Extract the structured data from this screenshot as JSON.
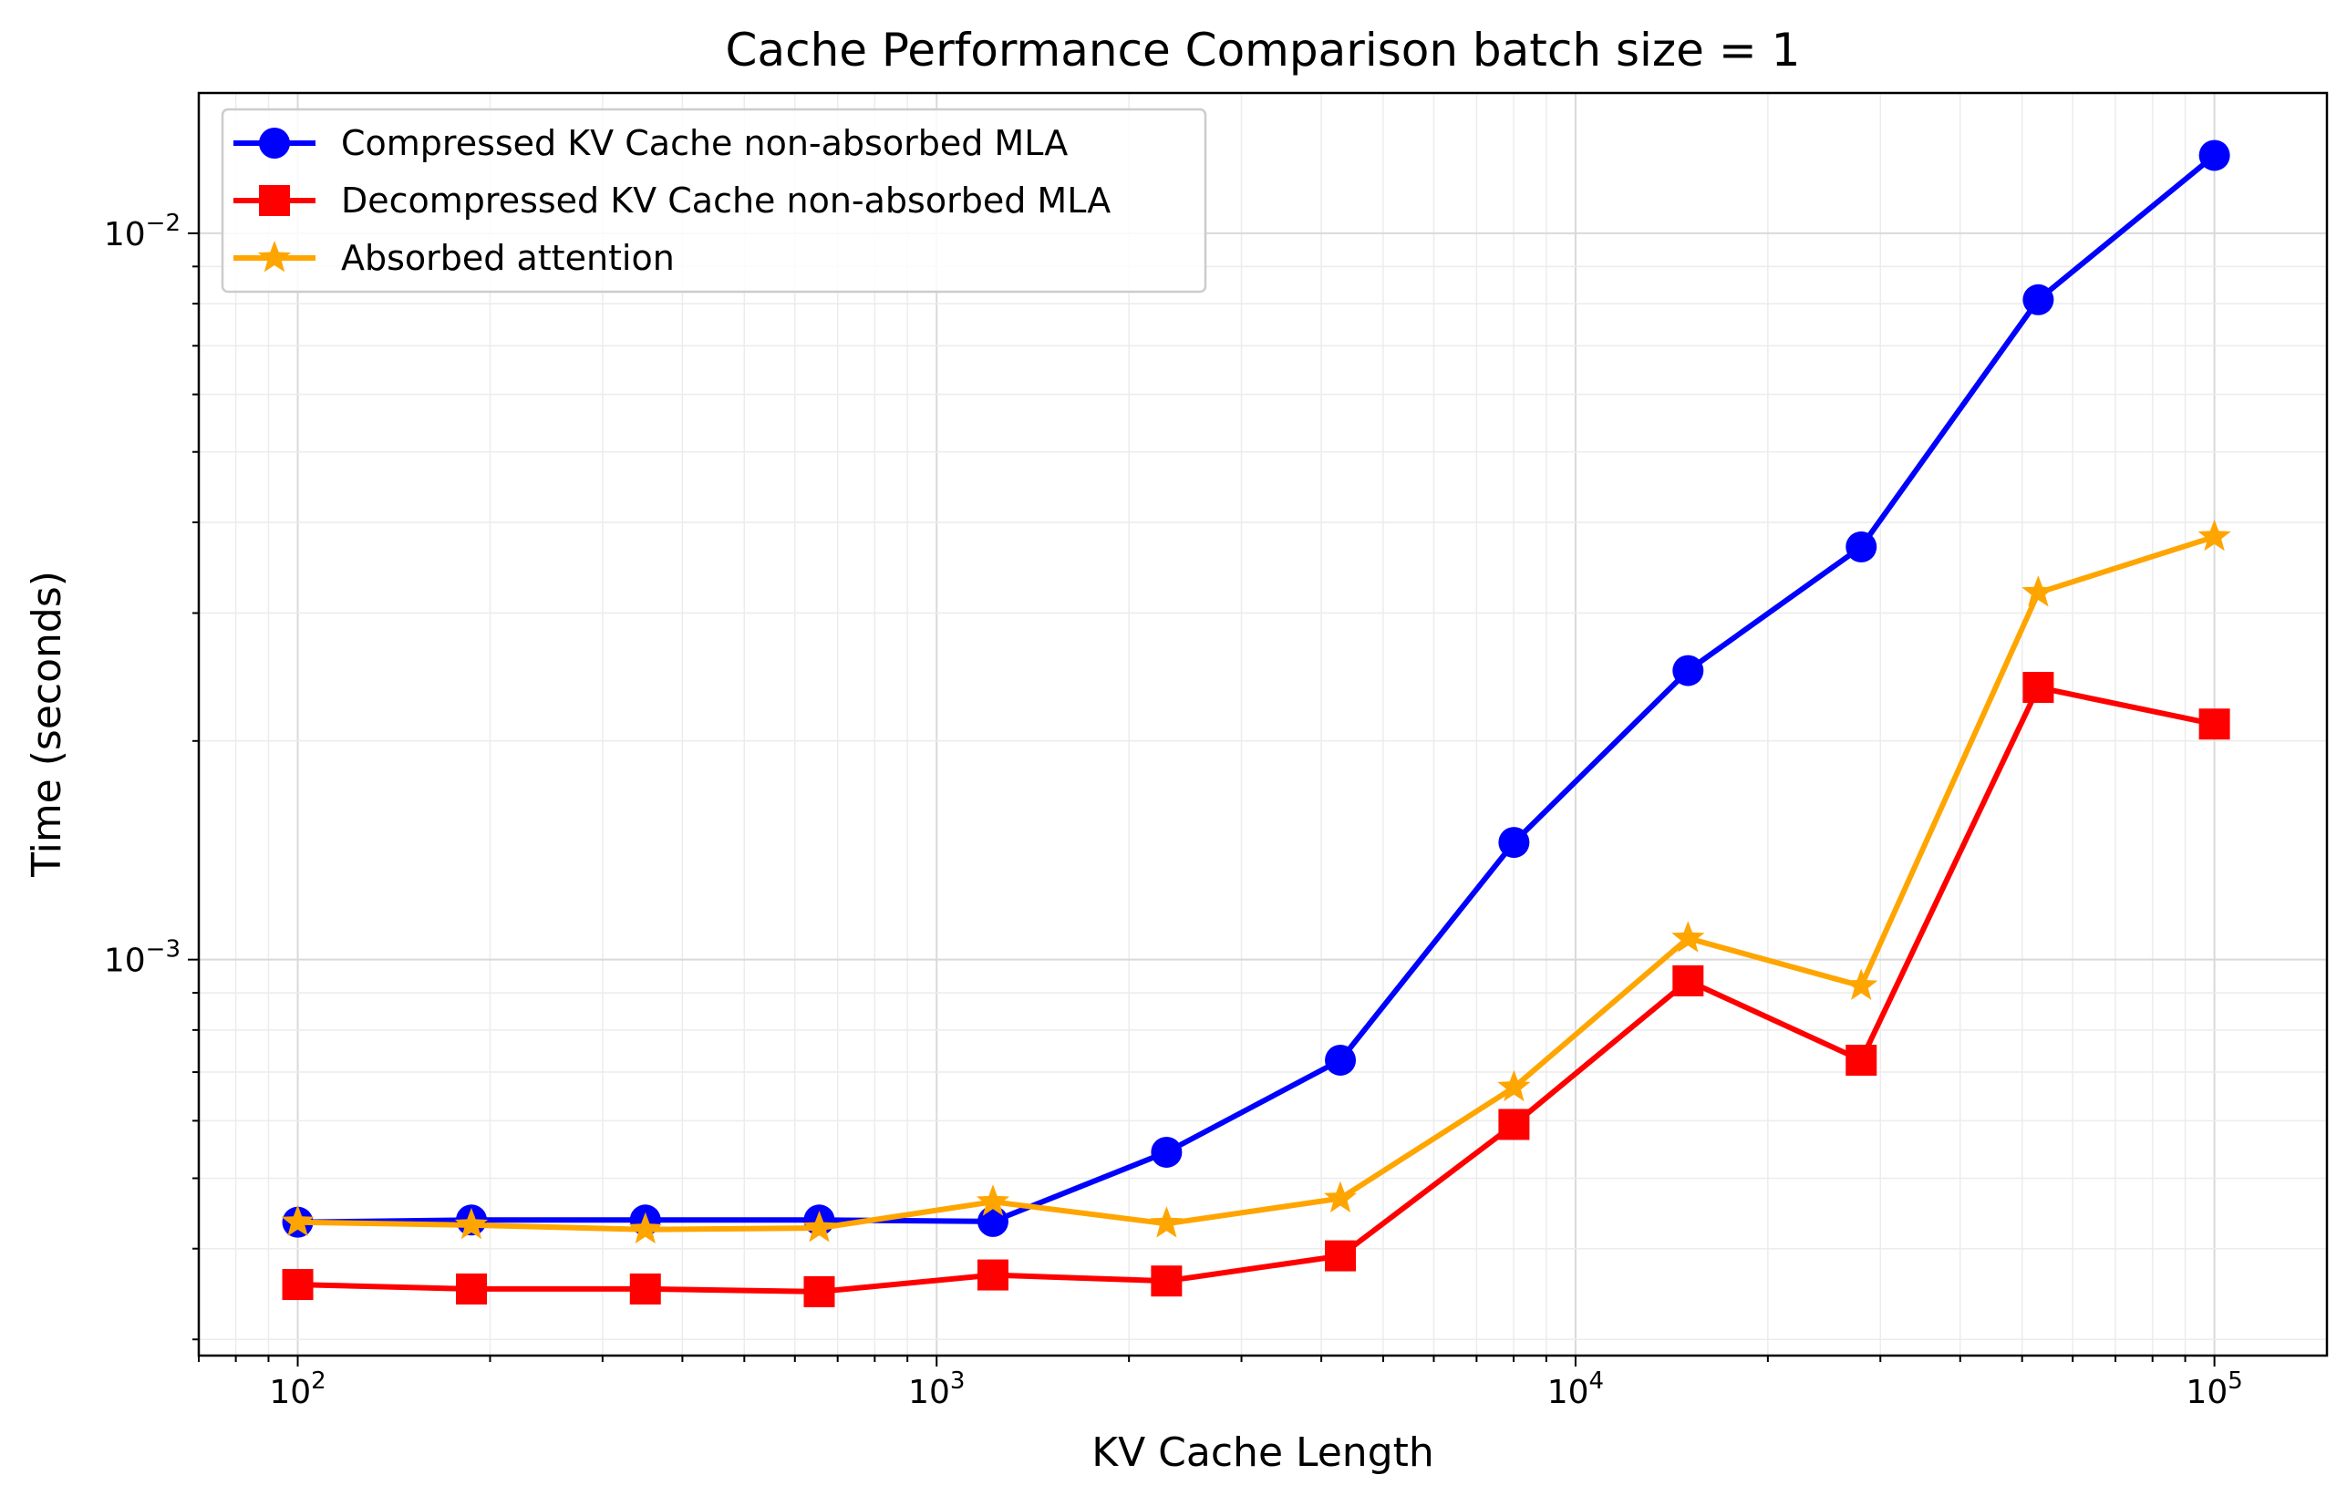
{
  "chart_data": {
    "type": "line",
    "title": "Cache Performance Comparison batch size = 1",
    "xlabel": "KV Cache Length",
    "ylabel": "Time (seconds)",
    "xscale": "log",
    "yscale": "log",
    "xlim": [
      70,
      150000
    ],
    "ylim": [
      0.000285,
      0.0156
    ],
    "grid": true,
    "legend_position": "top-left",
    "x_ticks": [
      {
        "value": 100,
        "base": "10",
        "exp": "2"
      },
      {
        "value": 1000,
        "base": "10",
        "exp": "3"
      },
      {
        "value": 10000,
        "base": "10",
        "exp": "4"
      },
      {
        "value": 100000,
        "base": "10",
        "exp": "5"
      }
    ],
    "y_ticks": [
      {
        "value": 0.001,
        "base": "10",
        "exp": "−3"
      },
      {
        "value": 0.01,
        "base": "10",
        "exp": "−2"
      }
    ],
    "x": [
      100,
      187,
      350,
      655,
      1225,
      2290,
      4285,
      8010,
      15000,
      28000,
      53000,
      100000
    ],
    "series": [
      {
        "name": "Compressed KV Cache non-absorbed MLA",
        "color": "#0000ff",
        "marker": "circle",
        "values": [
          0.000435,
          0.000438,
          0.000438,
          0.000438,
          0.000436,
          0.000543,
          0.000727,
          0.00145,
          0.0025,
          0.0037,
          0.0081,
          0.0128
        ]
      },
      {
        "name": "Decompressed KV Cache non-absorbed MLA",
        "color": "#ff0000",
        "marker": "square",
        "values": [
          0.000357,
          0.000352,
          0.000352,
          0.000349,
          0.000368,
          0.000361,
          0.000391,
          0.000593,
          0.000935,
          0.000727,
          0.00237,
          0.00211
        ]
      },
      {
        "name": "Absorbed attention",
        "color": "#ffa500",
        "marker": "star",
        "values": [
          0.000435,
          0.000431,
          0.000425,
          0.000427,
          0.000464,
          0.000433,
          0.000469,
          0.000667,
          0.00107,
          0.00092,
          0.0032,
          0.00382
        ]
      }
    ]
  }
}
